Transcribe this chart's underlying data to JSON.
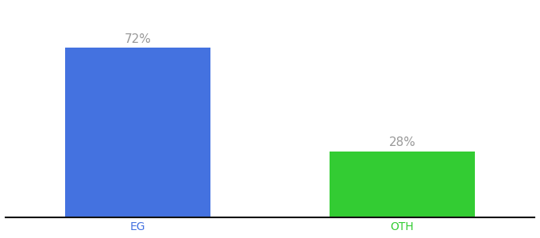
{
  "categories": [
    "EG",
    "OTH"
  ],
  "values": [
    72,
    28
  ],
  "bar_colors": [
    "#4472e0",
    "#33cc33"
  ],
  "label_texts": [
    "72%",
    "28%"
  ],
  "label_color": "#999999",
  "tick_colors": [
    "#4472e0",
    "#33cc33"
  ],
  "ylabel": "",
  "ylim": [
    0,
    90
  ],
  "background_color": "#ffffff",
  "bar_width": 0.55,
  "label_fontsize": 11,
  "tick_fontsize": 10,
  "spine_color": "#111111",
  "xlim": [
    -0.5,
    1.5
  ]
}
